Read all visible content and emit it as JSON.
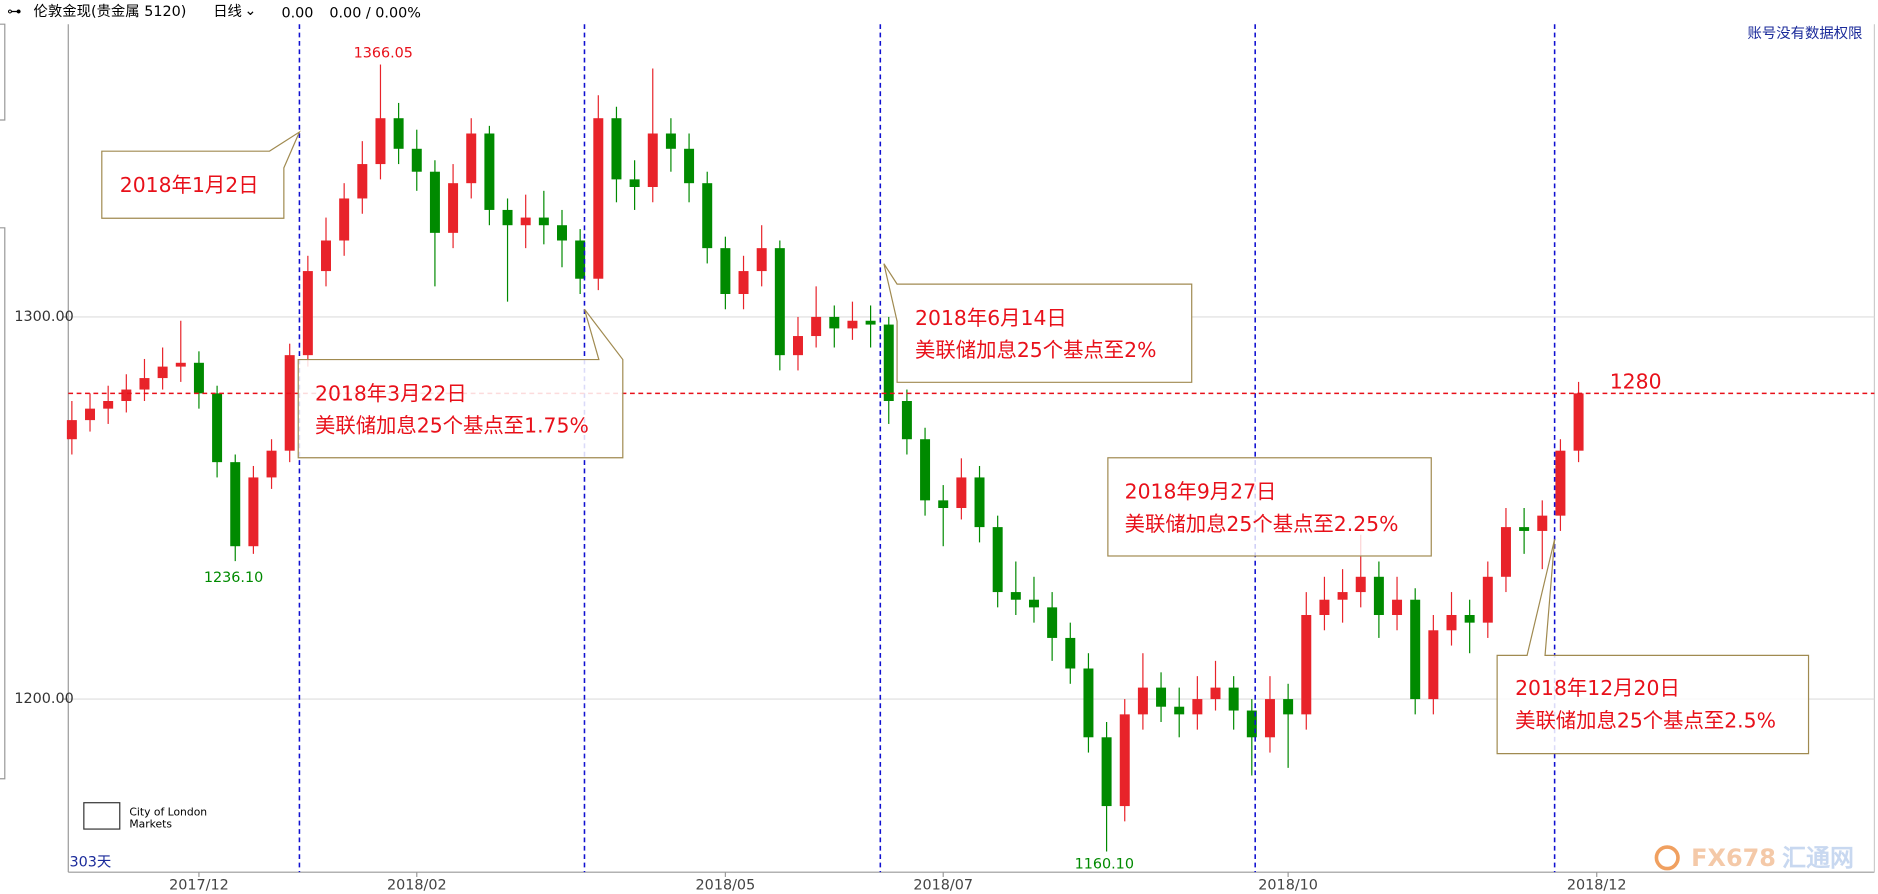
{
  "header": {
    "symbol": "伦敦金现(贵金属 5120)",
    "period": "日线",
    "price": "0.00",
    "change": "0.00 / 0.00%",
    "notice": "账号没有数据权限"
  },
  "footer": {
    "days": "303天",
    "logo": [
      "City of London",
      "Markets"
    ],
    "watermark": [
      "FX678",
      "汇通网"
    ]
  },
  "annotations": [
    {
      "lines": [
        "2018年1月2日"
      ]
    },
    {
      "lines": [
        "2018年3月22日",
        "美联储加息25个基点至1.75%"
      ]
    },
    {
      "lines": [
        "2018年6月14日",
        "美联储加息25个基点至2%"
      ]
    },
    {
      "lines": [
        "2018年9月27日",
        "美联储加息25个基点至2.25%"
      ]
    },
    {
      "lines": [
        "2018年12月20日",
        "美联储加息25个基点至2.5%"
      ]
    }
  ],
  "chart_data": {
    "type": "candlestick",
    "up_color": "#e8232a",
    "down_color": "#008a00",
    "hline": 1280,
    "hline_color": "#e8101a",
    "extremes": [
      {
        "value": 1366.05,
        "label": "1366.05",
        "color": "#e8101a"
      },
      {
        "value": 1236.1,
        "label": "1236.10",
        "color": "#008a00"
      },
      {
        "value": 1160.1,
        "label": "1160.10",
        "color": "#008a00"
      }
    ],
    "ylim": [
      1154.7,
      1376.6
    ],
    "yticks": [
      {
        "value": 1200,
        "label": "1200.00"
      },
      {
        "value": 1300,
        "label": "1300.00"
      }
    ],
    "grid": true,
    "categories": [
      null,
      null,
      null,
      null,
      null,
      null,
      null,
      "2017/12",
      null,
      null,
      null,
      null,
      null,
      null,
      null,
      null,
      null,
      null,
      null,
      "2018/02",
      null,
      null,
      null,
      null,
      null,
      null,
      null,
      null,
      null,
      null,
      null,
      null,
      null,
      null,
      null,
      null,
      "2018/05",
      null,
      null,
      null,
      null,
      null,
      null,
      null,
      null,
      null,
      null,
      null,
      "2018/07",
      null,
      null,
      null,
      null,
      null,
      null,
      null,
      null,
      null,
      null,
      null,
      null,
      null,
      null,
      null,
      null,
      null,
      null,
      "2018/10",
      null,
      null,
      null,
      null,
      null,
      null,
      null,
      null,
      null,
      null,
      null,
      null,
      null,
      null,
      null,
      null,
      "2018/12"
    ],
    "ohlc": [
      [
        1268,
        1278,
        1264,
        1273
      ],
      [
        1273,
        1280,
        1270,
        1276
      ],
      [
        1276,
        1282,
        1272,
        1278
      ],
      [
        1278,
        1285,
        1275,
        1281
      ],
      [
        1281,
        1289,
        1278,
        1284
      ],
      [
        1284,
        1292,
        1281,
        1287
      ],
      [
        1287,
        1299,
        1283,
        1288
      ],
      [
        1288,
        1291,
        1276,
        1280
      ],
      [
        1280,
        1282,
        1258,
        1262
      ],
      [
        1262,
        1264,
        1236.1,
        1240
      ],
      [
        1240,
        1261,
        1238,
        1258
      ],
      [
        1258,
        1268,
        1255,
        1265
      ],
      [
        1265,
        1293,
        1262,
        1290
      ],
      [
        1290,
        1316,
        1287,
        1312
      ],
      [
        1312,
        1326,
        1308,
        1320
      ],
      [
        1320,
        1335,
        1316,
        1331
      ],
      [
        1331,
        1346,
        1327,
        1340
      ],
      [
        1340,
        1366.05,
        1336,
        1352
      ],
      [
        1352,
        1356,
        1340,
        1344
      ],
      [
        1344,
        1349,
        1333,
        1338
      ],
      [
        1338,
        1341,
        1308,
        1322
      ],
      [
        1322,
        1340,
        1318,
        1335
      ],
      [
        1335,
        1352,
        1331,
        1348
      ],
      [
        1348,
        1350,
        1324,
        1328
      ],
      [
        1328,
        1331,
        1304,
        1324
      ],
      [
        1324,
        1332,
        1318,
        1326
      ],
      [
        1326,
        1333,
        1319,
        1324
      ],
      [
        1324,
        1328,
        1313,
        1320
      ],
      [
        1320,
        1323,
        1306,
        1310
      ],
      [
        1310,
        1358,
        1307,
        1352
      ],
      [
        1352,
        1355,
        1330,
        1336
      ],
      [
        1336,
        1341,
        1328,
        1334
      ],
      [
        1334,
        1365,
        1330,
        1348
      ],
      [
        1348,
        1352,
        1338,
        1344
      ],
      [
        1344,
        1348,
        1330,
        1335
      ],
      [
        1335,
        1338,
        1314,
        1318
      ],
      [
        1318,
        1321,
        1302,
        1306
      ],
      [
        1306,
        1316,
        1302,
        1312
      ],
      [
        1312,
        1324,
        1308,
        1318
      ],
      [
        1318,
        1320,
        1286,
        1290
      ],
      [
        1290,
        1300,
        1286,
        1295
      ],
      [
        1295,
        1308,
        1292,
        1300
      ],
      [
        1300,
        1303,
        1292,
        1297
      ],
      [
        1297,
        1304,
        1294,
        1299
      ],
      [
        1299,
        1303,
        1292,
        1298
      ],
      [
        1298,
        1300,
        1272,
        1278
      ],
      [
        1278,
        1281,
        1264,
        1268
      ],
      [
        1268,
        1271,
        1248,
        1252
      ],
      [
        1252,
        1256,
        1240,
        1250
      ],
      [
        1250,
        1263,
        1247,
        1258
      ],
      [
        1258,
        1261,
        1241,
        1245
      ],
      [
        1245,
        1248,
        1224,
        1228
      ],
      [
        1228,
        1236,
        1222,
        1226
      ],
      [
        1226,
        1232,
        1220,
        1224
      ],
      [
        1224,
        1228,
        1210,
        1216
      ],
      [
        1216,
        1220,
        1204,
        1208
      ],
      [
        1208,
        1212,
        1186,
        1190
      ],
      [
        1190,
        1194,
        1160.1,
        1172
      ],
      [
        1172,
        1200,
        1168,
        1196
      ],
      [
        1196,
        1212,
        1192,
        1203
      ],
      [
        1203,
        1207,
        1194,
        1198
      ],
      [
        1198,
        1203,
        1190,
        1196
      ],
      [
        1196,
        1206,
        1192,
        1200
      ],
      [
        1200,
        1210,
        1197,
        1203
      ],
      [
        1203,
        1206,
        1192,
        1197
      ],
      [
        1197,
        1200,
        1180,
        1190
      ],
      [
        1190,
        1206,
        1186,
        1200
      ],
      [
        1200,
        1204,
        1182,
        1196
      ],
      [
        1196,
        1228,
        1192,
        1222
      ],
      [
        1222,
        1232,
        1218,
        1226
      ],
      [
        1226,
        1234,
        1220,
        1228
      ],
      [
        1228,
        1243,
        1224,
        1232
      ],
      [
        1232,
        1236,
        1216,
        1222
      ],
      [
        1222,
        1232,
        1218,
        1226
      ],
      [
        1226,
        1229,
        1196,
        1200
      ],
      [
        1200,
        1222,
        1196,
        1218
      ],
      [
        1218,
        1228,
        1214,
        1222
      ],
      [
        1222,
        1226,
        1212,
        1220
      ],
      [
        1220,
        1236,
        1216,
        1232
      ],
      [
        1232,
        1250,
        1228,
        1245
      ],
      [
        1245,
        1250,
        1238,
        1244
      ],
      [
        1244,
        1252,
        1234,
        1248
      ],
      [
        1248,
        1268,
        1244,
        1265
      ],
      [
        1265,
        1283,
        1262,
        1280
      ]
    ]
  }
}
